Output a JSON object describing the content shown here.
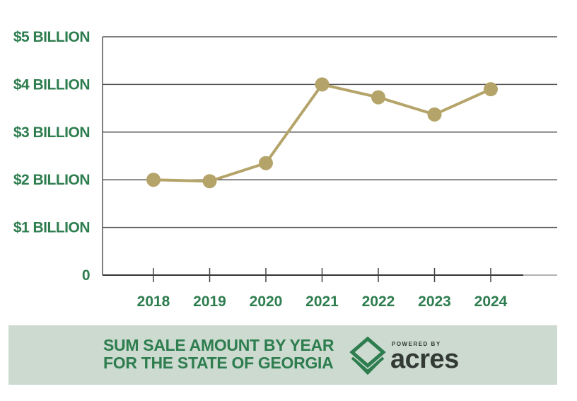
{
  "chart_data": {
    "type": "line",
    "title": "SUM SALE AMOUNT BY YEAR FOR THE STATE OF GEORGIA",
    "categories": [
      "2018",
      "2019",
      "2020",
      "2021",
      "2022",
      "2023",
      "2024"
    ],
    "values": [
      2.0,
      1.97,
      2.35,
      4.0,
      3.73,
      3.37,
      3.9
    ],
    "unit": "billion USD",
    "ylim": [
      0,
      5
    ],
    "yticks": [
      {
        "value": 0,
        "label": "0"
      },
      {
        "value": 1,
        "label": "$1 BILLION"
      },
      {
        "value": 2,
        "label": "$2 BILLION"
      },
      {
        "value": 3,
        "label": "$3 BILLION"
      },
      {
        "value": 4,
        "label": "$4 BILLION"
      },
      {
        "value": 5,
        "label": "$5 BILLION"
      }
    ],
    "grid": true,
    "colors": {
      "line": "#b5a46a",
      "marker": "#b5a46a",
      "ticks": "#2e7d4f",
      "grid": "#555555"
    }
  },
  "footer": {
    "title_line1": "SUM SALE AMOUNT BY YEAR",
    "title_line2": "FOR THE STATE OF GEORGIA",
    "logo_tagline": "POWERED BY",
    "logo_name": "acres",
    "background": "#ccdad0"
  }
}
